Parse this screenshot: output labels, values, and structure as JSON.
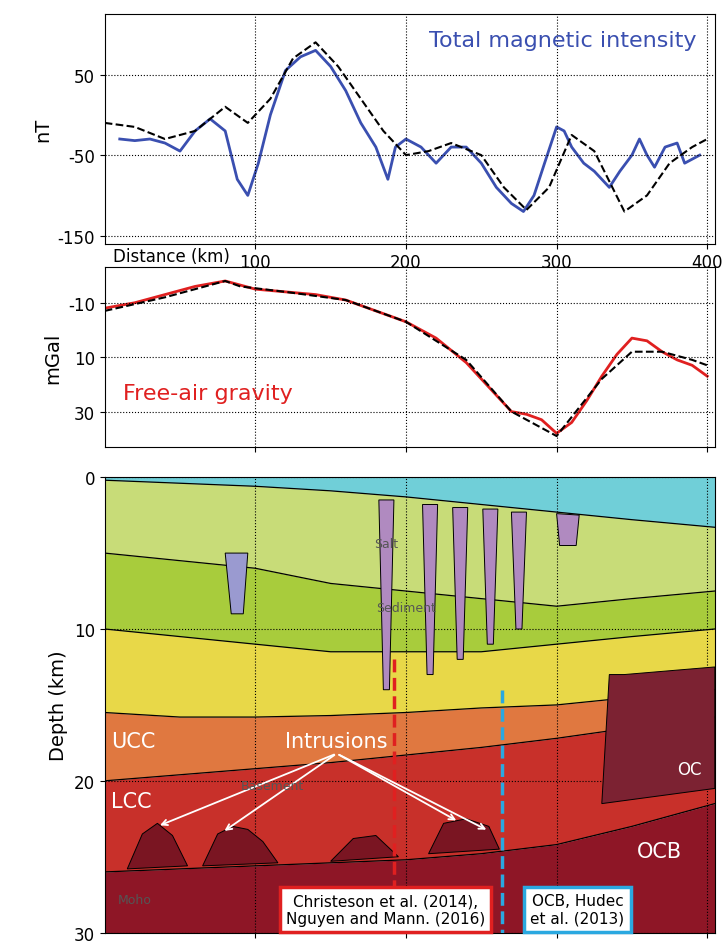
{
  "chart_data": [
    {
      "type": "line",
      "title": "Total magnetic intensity",
      "color": "#3a4fb0",
      "xlabel": "Distance (km)",
      "ylabel": "nT",
      "xlim": [
        0,
        405
      ],
      "xticks": [
        100,
        200,
        300,
        400
      ],
      "ylim": [
        -160,
        125
      ],
      "yticks": [
        50,
        -50,
        -150
      ],
      "grid": true,
      "series": [
        {
          "color": "#3a4fb0",
          "line_style": "solid",
          "x": [
            10,
            20,
            30,
            40,
            50,
            60,
            70,
            80,
            88,
            95,
            102,
            110,
            120,
            130,
            140,
            150,
            160,
            170,
            180,
            188,
            193,
            200,
            210,
            220,
            230,
            240,
            250,
            260,
            270,
            278,
            285,
            292,
            300,
            305,
            310,
            318,
            325,
            335,
            342,
            350,
            355,
            360,
            365,
            372,
            380,
            385,
            390,
            395
          ],
          "values": [
            -30,
            -32,
            -30,
            -35,
            -45,
            -20,
            -5,
            -20,
            -80,
            -100,
            -60,
            0,
            55,
            72,
            80,
            60,
            30,
            -10,
            -40,
            -80,
            -40,
            -30,
            -40,
            -60,
            -40,
            -40,
            -60,
            -90,
            -110,
            -120,
            -100,
            -60,
            -15,
            -20,
            -40,
            -60,
            -70,
            -90,
            -70,
            -50,
            -30,
            -50,
            -65,
            -40,
            -35,
            -60,
            -55,
            -50
          ]
        },
        {
          "color": "#000000",
          "line_style": "dashed",
          "x": [
            0,
            20,
            40,
            60,
            80,
            95,
            110,
            125,
            140,
            155,
            170,
            185,
            200,
            215,
            230,
            250,
            265,
            280,
            295,
            310,
            325,
            345,
            360,
            375,
            390,
            400
          ],
          "values": [
            -10,
            -15,
            -30,
            -20,
            10,
            -10,
            20,
            70,
            90,
            60,
            20,
            -20,
            -50,
            -45,
            -35,
            -50,
            -90,
            -118,
            -90,
            -25,
            -45,
            -120,
            -100,
            -60,
            -40,
            -30
          ]
        }
      ]
    },
    {
      "type": "line",
      "title": "Free-air gravity",
      "color": "#e02020",
      "ylabel": "mGal",
      "tick_labels": "y",
      "xlim": [
        0,
        405
      ],
      "xticks": [
        100,
        200,
        300,
        400
      ],
      "ylim": [
        43,
        -23
      ],
      "yticks": [
        -10,
        10,
        30
      ],
      "grid": true,
      "series": [
        {
          "color": "#e02020",
          "line_style": "solid",
          "x": [
            0,
            20,
            40,
            60,
            80,
            100,
            120,
            140,
            160,
            180,
            200,
            220,
            240,
            260,
            270,
            280,
            290,
            300,
            310,
            320,
            330,
            340,
            350,
            360,
            370,
            380,
            390,
            400
          ],
          "values": [
            -8,
            -10,
            -13,
            -16,
            -18,
            -15,
            -14,
            -13,
            -11,
            -7,
            -3,
            3,
            12,
            24,
            30,
            31,
            33,
            38,
            34,
            26,
            17,
            9,
            3,
            4,
            8,
            11,
            13,
            17
          ]
        },
        {
          "color": "#000000",
          "line_style": "dashed",
          "x": [
            0,
            40,
            80,
            90,
            120,
            160,
            200,
            240,
            270,
            300,
            330,
            350,
            370,
            390,
            400
          ],
          "values": [
            -7,
            -12,
            -18,
            -16,
            -14,
            -11,
            -3,
            11,
            30,
            39,
            18,
            8,
            8,
            11,
            13
          ]
        }
      ]
    },
    {
      "type": "section",
      "ylabel": "Depth (km)",
      "tick_labels": "y",
      "xlim": [
        0,
        405
      ],
      "xticks": [
        100,
        200,
        300,
        400
      ],
      "ylim": [
        30,
        0
      ],
      "yticks": [
        0,
        10,
        20,
        30
      ],
      "grid": true,
      "x": [
        0,
        50,
        100,
        150,
        200,
        250,
        300,
        350,
        405
      ],
      "layers": [
        {
          "color": "#70cfd8",
          "bottom": [
            0.2,
            0.4,
            0.6,
            0.9,
            1.3,
            1.8,
            2.3,
            2.8,
            3.3
          ]
        },
        {
          "color": "#c8dc78",
          "bottom": [
            5,
            5.5,
            6,
            7,
            7.5,
            8,
            8.5,
            8,
            7.5
          ]
        },
        {
          "color": "#a8cc3c",
          "bottom": [
            10,
            10.5,
            11,
            11.5,
            11.5,
            11.5,
            11,
            10.5,
            10
          ]
        },
        {
          "color": "#e8d848",
          "bottom": [
            15.5,
            15.8,
            15.8,
            15.7,
            15.5,
            15.2,
            15,
            14.5,
            14
          ]
        },
        {
          "color": "#e07840",
          "bottom": [
            20,
            19.6,
            19.2,
            18.8,
            18.3,
            17.8,
            17.2,
            16.5,
            15.8
          ]
        },
        {
          "color": "#c8302a",
          "bottom": [
            26,
            25.8,
            25.6,
            25.4,
            25.2,
            24.8,
            24.2,
            23,
            21.5
          ]
        },
        {
          "color": "#8e1626",
          "bottom": [
            30,
            30,
            30,
            30,
            30,
            30,
            30,
            30,
            30
          ]
        }
      ],
      "bodies": [
        {
          "color": "#9a9ad0",
          "x": [
            80,
            95,
            92,
            84
          ],
          "depth": [
            5,
            5,
            9,
            9
          ]
        },
        {
          "color": "#b08ac0",
          "x": [
            182,
            192,
            189,
            185
          ],
          "depth": [
            1.5,
            1.5,
            14,
            14
          ]
        },
        {
          "color": "#b08ac0",
          "x": [
            211,
            221,
            218,
            214
          ],
          "depth": [
            1.8,
            1.8,
            13,
            13
          ]
        },
        {
          "color": "#b08ac0",
          "x": [
            231,
            241,
            238,
            234
          ],
          "depth": [
            2,
            2,
            12,
            12
          ]
        },
        {
          "color": "#b08ac0",
          "x": [
            251,
            261,
            258,
            254
          ],
          "depth": [
            2.1,
            2.1,
            11,
            11
          ]
        },
        {
          "color": "#b08ac0",
          "x": [
            270,
            280,
            277,
            273
          ],
          "depth": [
            2.3,
            2.3,
            10,
            10
          ]
        },
        {
          "color": "#b08ac0",
          "x": [
            300,
            315,
            313,
            302
          ],
          "depth": [
            2.4,
            2.5,
            4.5,
            4.5
          ]
        },
        {
          "color": "#7a1522",
          "x": [
            15,
            25,
            35,
            45,
            55
          ],
          "depth": [
            25.8,
            23.5,
            22.8,
            23.6,
            25.6
          ]
        },
        {
          "color": "#7a1522",
          "x": [
            65,
            75,
            85,
            95,
            105,
            115
          ],
          "depth": [
            25.6,
            23.5,
            23,
            23.2,
            24,
            25.4
          ]
        },
        {
          "color": "#7a1522",
          "x": [
            150,
            165,
            180,
            195
          ],
          "depth": [
            25.3,
            23.8,
            23.6,
            25
          ]
        },
        {
          "color": "#7a1522",
          "x": [
            215,
            225,
            240,
            255,
            262
          ],
          "depth": [
            24.8,
            22.8,
            22.5,
            23,
            24.5
          ]
        },
        {
          "color": "#7c2232",
          "x": [
            335,
            345,
            405,
            405,
            330
          ],
          "depth": [
            13,
            13,
            12.5,
            20.5,
            21.5
          ]
        }
      ],
      "markers": [
        {
          "x": 192,
          "top": 12,
          "color": "#e02020",
          "label": "Christeson et al. (2014),\nNguyen and Mann. (2016)"
        },
        {
          "x": 264,
          "top": 14,
          "color": "#2aa8e0",
          "label": "OCB, Hudec\net al. (2013)"
        }
      ],
      "labels": [
        "UCC",
        "LCC",
        "Intrusions",
        "OC",
        "OCB",
        "Salt",
        "Sediment",
        "Basement",
        "Moho"
      ]
    }
  ]
}
